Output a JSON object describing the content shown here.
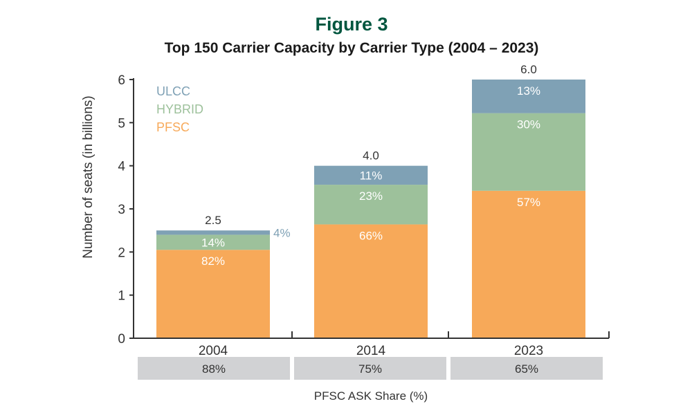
{
  "figure_label": "Figure 3",
  "chart_data": {
    "type": "bar",
    "stacked": true,
    "title": "Top 150 Carrier Capacity by Carrier Type (2004 – 2023)",
    "xlabel": "",
    "ylabel": "Number of seats (in billions)",
    "ylim": [
      0,
      6
    ],
    "yticks": [
      0,
      1,
      2,
      3,
      4,
      5,
      6
    ],
    "grid": false,
    "legend_position": "top-left",
    "categories": [
      "2004",
      "2014",
      "2023"
    ],
    "totals": [
      2.5,
      4.0,
      6.0
    ],
    "total_labels": [
      "2.5",
      "4.0",
      "6.0"
    ],
    "series": [
      {
        "name": "PFSC",
        "color": "#f7a959",
        "values": [
          2.05,
          2.64,
          3.42
        ],
        "labels": [
          "82%",
          "66%",
          "57%"
        ]
      },
      {
        "name": "HYBRID",
        "color": "#9dc19b",
        "values": [
          0.35,
          0.92,
          1.8
        ],
        "labels": [
          "14%",
          "23%",
          "30%"
        ]
      },
      {
        "name": "ULCC",
        "color": "#7fa1b5",
        "values": [
          0.1,
          0.44,
          0.78
        ],
        "labels": [
          "4%",
          "11%",
          "13%"
        ]
      }
    ],
    "legend_order": [
      "ULCC",
      "HYBRID",
      "PFSC"
    ],
    "share_row": {
      "label": "PFSC ASK Share (%)",
      "values": [
        "88%",
        "75%",
        "65%"
      ]
    }
  },
  "colors": {
    "figure_label": "#00563f",
    "axis": "#333333",
    "share_box": "#d1d2d4",
    "label_light": "#ffffff",
    "label_outside": "#7fa1b5"
  }
}
